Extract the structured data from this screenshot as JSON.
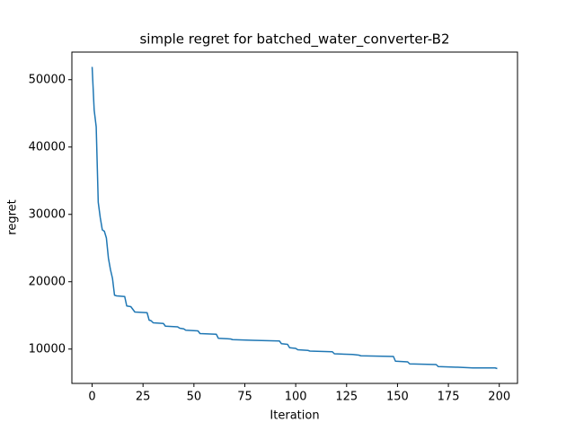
{
  "chart_data": {
    "type": "line",
    "title": "simple regret for batched_water_converter-B2",
    "xlabel": "Iteration",
    "ylabel": "regret",
    "xlim": [
      -9.95,
      208.95
    ],
    "ylim": [
      4900,
      54100
    ],
    "xticks": [
      0,
      25,
      50,
      75,
      100,
      125,
      150,
      175,
      200
    ],
    "yticks": [
      10000,
      20000,
      30000,
      40000,
      50000
    ],
    "grid": false,
    "series": [
      {
        "name": "simple regret",
        "color": "#1f77b4",
        "x": [
          0,
          1,
          2,
          3,
          4,
          5,
          6,
          7,
          8,
          9,
          10,
          11,
          12,
          16,
          17,
          19,
          21,
          27,
          28,
          29,
          30,
          35,
          36,
          42,
          43,
          45,
          46,
          52,
          53,
          61,
          62,
          68,
          69,
          79,
          92,
          93,
          96,
          97,
          100,
          101,
          106,
          107,
          118,
          119,
          128,
          131,
          132,
          148,
          149,
          155,
          156,
          169,
          170,
          180,
          187,
          198,
          199
        ],
        "values": [
          51900,
          45500,
          43000,
          31800,
          29500,
          27700,
          27500,
          26500,
          23500,
          21800,
          20500,
          18000,
          17900,
          17800,
          16400,
          16300,
          15500,
          15400,
          14300,
          14200,
          13900,
          13800,
          13400,
          13300,
          13100,
          13000,
          12800,
          12700,
          12300,
          12200,
          11600,
          11500,
          11400,
          11300,
          11200,
          10800,
          10700,
          10200,
          10100,
          9900,
          9800,
          9700,
          9600,
          9300,
          9200,
          9100,
          9000,
          8900,
          8200,
          8100,
          7800,
          7700,
          7400,
          7300,
          7200,
          7200,
          7100
        ]
      }
    ]
  }
}
